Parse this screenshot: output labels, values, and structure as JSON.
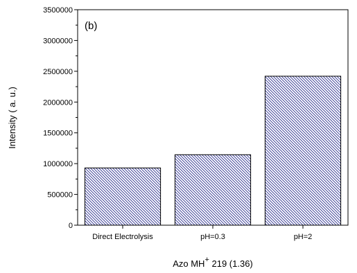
{
  "chart_data": {
    "type": "bar",
    "panel_label": "(b)",
    "categories": [
      "Direct Electrolysis",
      "pH=0.3",
      "pH=2"
    ],
    "values": [
      930000,
      1145000,
      2420000
    ],
    "ylabel": "Intensity ( a. u.)",
    "xlabel": {
      "main": "Azo MH",
      "superscript": "+",
      "suffix": " 219 (1.36)"
    },
    "ylim": [
      0,
      3500000
    ],
    "yticks": [
      0,
      500000,
      1000000,
      1500000,
      2000000,
      2500000,
      3000000,
      3500000
    ],
    "bar_fill": "hatched",
    "bar_color": "#2b2f8f",
    "grid": false,
    "legend": "none"
  }
}
